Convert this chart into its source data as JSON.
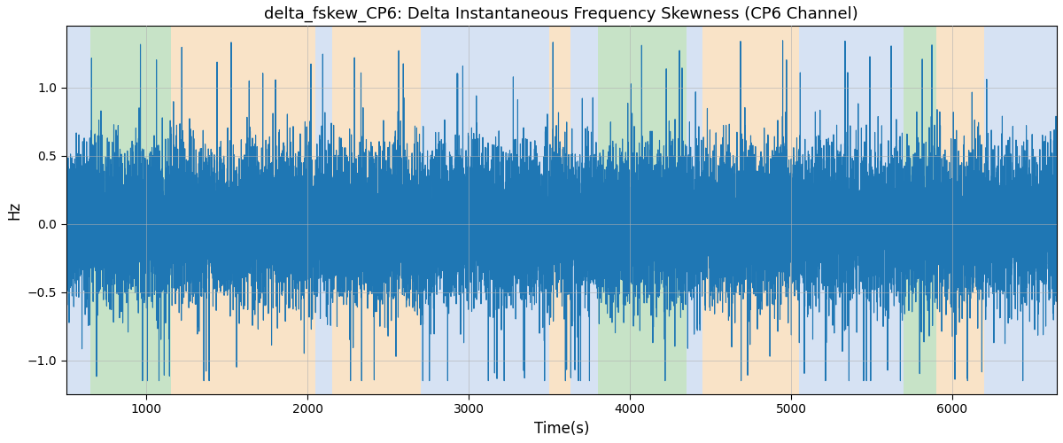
{
  "title": "delta_fskew_CP6: Delta Instantaneous Frequency Skewness (CP6 Channel)",
  "xlabel": "Time(s)",
  "ylabel": "Hz",
  "xlim": [
    500,
    6650
  ],
  "ylim": [
    -1.25,
    1.45
  ],
  "yticks": [
    -1.0,
    -0.5,
    0.0,
    0.5,
    1.0
  ],
  "background_color": "#ffffff",
  "line_color": "#1f77b4",
  "line_width": 0.8,
  "seed": 42,
  "x_start": 500,
  "x_end": 6650,
  "bands": [
    {
      "xmin": 500,
      "xmax": 650,
      "color": "#aec6e8",
      "alpha": 0.5
    },
    {
      "xmin": 650,
      "xmax": 1150,
      "color": "#90c990",
      "alpha": 0.5
    },
    {
      "xmin": 1150,
      "xmax": 2050,
      "color": "#f5c990",
      "alpha": 0.5
    },
    {
      "xmin": 2050,
      "xmax": 2150,
      "color": "#aec6e8",
      "alpha": 0.5
    },
    {
      "xmin": 2150,
      "xmax": 2700,
      "color": "#f5c990",
      "alpha": 0.5
    },
    {
      "xmin": 2700,
      "xmax": 2800,
      "color": "#aec6e8",
      "alpha": 0.5
    },
    {
      "xmin": 2800,
      "xmax": 3500,
      "color": "#aec6e8",
      "alpha": 0.5
    },
    {
      "xmin": 3500,
      "xmax": 3630,
      "color": "#f5c990",
      "alpha": 0.5
    },
    {
      "xmin": 3630,
      "xmax": 3800,
      "color": "#aec6e8",
      "alpha": 0.5
    },
    {
      "xmin": 3800,
      "xmax": 4350,
      "color": "#90c990",
      "alpha": 0.5
    },
    {
      "xmin": 4350,
      "xmax": 4450,
      "color": "#aec6e8",
      "alpha": 0.5
    },
    {
      "xmin": 4450,
      "xmax": 5050,
      "color": "#f5c990",
      "alpha": 0.5
    },
    {
      "xmin": 5050,
      "xmax": 5700,
      "color": "#aec6e8",
      "alpha": 0.5
    },
    {
      "xmin": 5700,
      "xmax": 5900,
      "color": "#90c990",
      "alpha": 0.5
    },
    {
      "xmin": 5900,
      "xmax": 6200,
      "color": "#f5c990",
      "alpha": 0.5
    },
    {
      "xmin": 6200,
      "xmax": 6650,
      "color": "#aec6e8",
      "alpha": 0.5
    }
  ]
}
